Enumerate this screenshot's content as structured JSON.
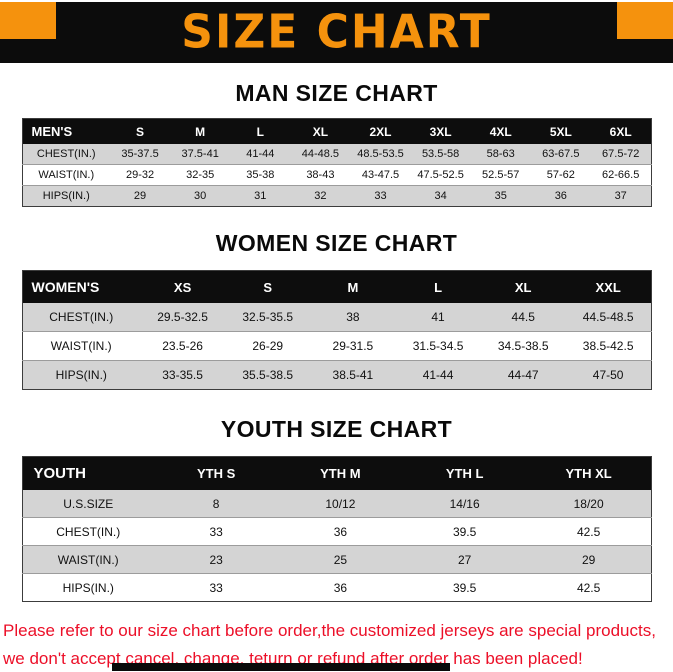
{
  "banner": {
    "title": "SIZE CHART",
    "bg_color": "#0c0c0c",
    "title_color": "#f5920d",
    "corner_color": "#f5920d"
  },
  "sections": [
    {
      "heading": "MAN SIZE CHART",
      "table": {
        "header": [
          "MEN'S",
          "S",
          "M",
          "L",
          "XL",
          "2XL",
          "3XL",
          "4XL",
          "5XL",
          "6XL"
        ],
        "rows": [
          [
            "CHEST(IN.)",
            "35-37.5",
            "37.5-41",
            "41-44",
            "44-48.5",
            "48.5-53.5",
            "53.5-58",
            "58-63",
            "63-67.5",
            "67.5-72"
          ],
          [
            "WAIST(IN.)",
            "29-32",
            "32-35",
            "35-38",
            "38-43",
            "43-47.5",
            "47.5-52.5",
            "52.5-57",
            "57-62",
            "62-66.5"
          ],
          [
            "HIPS(IN.)",
            "29",
            "30",
            "31",
            "32",
            "33",
            "34",
            "35",
            "36",
            "37"
          ]
        ]
      }
    },
    {
      "heading": "WOMEN SIZE CHART",
      "table": {
        "header": [
          "WOMEN'S",
          "XS",
          "S",
          "M",
          "L",
          "XL",
          "XXL"
        ],
        "rows": [
          [
            "CHEST(IN.)",
            "29.5-32.5",
            "32.5-35.5",
            "38",
            "41",
            "44.5",
            "44.5-48.5"
          ],
          [
            "WAIST(IN.)",
            "23.5-26",
            "26-29",
            "29-31.5",
            "31.5-34.5",
            "34.5-38.5",
            "38.5-42.5"
          ],
          [
            "HIPS(IN.)",
            "33-35.5",
            "35.5-38.5",
            "38.5-41",
            "41-44",
            "44-47",
            "47-50"
          ]
        ]
      }
    },
    {
      "heading": "YOUTH SIZE CHART",
      "table": {
        "header": [
          "YOUTH",
          "YTH S",
          "YTH M",
          "YTH L",
          "YTH XL"
        ],
        "rows": [
          [
            "U.S.SIZE",
            "8",
            "10/12",
            "14/16",
            "18/20"
          ],
          [
            "CHEST(IN.)",
            "33",
            "36",
            "39.5",
            "42.5"
          ],
          [
            "WAIST(IN.)",
            "23",
            "25",
            "27",
            "29"
          ],
          [
            "HIPS(IN.)",
            "33",
            "36",
            "39.5",
            "42.5"
          ]
        ]
      }
    }
  ],
  "footer": {
    "lines": [
      "Please refer to our size chart before order,the customized jerseys are special products,",
      "we don't accept cancel, change, teturn or refund after order has been placed!"
    ],
    "text_color": "#ec0f28"
  }
}
